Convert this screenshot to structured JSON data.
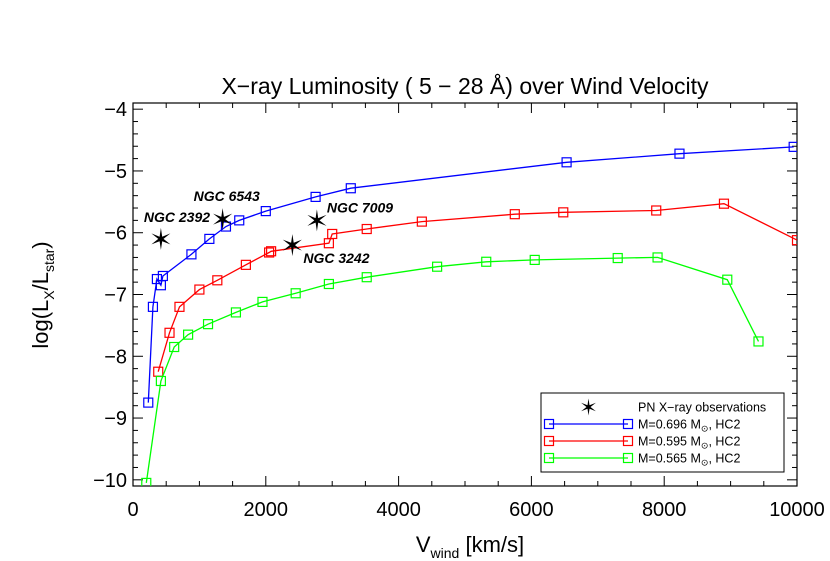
{
  "chart_data": {
    "type": "line",
    "title": "X−ray Luminosity (  5 −  28 Å) over Wind Velocity",
    "xlabel": {
      "main": "V",
      "sub": "wind",
      "rest": " [km/s]"
    },
    "ylabel": {
      "main": "log(L",
      "sub1": "X",
      "mid": "/L",
      "sub2": "star",
      "rest": ")"
    },
    "xlim": [
      0,
      10000
    ],
    "ylim": [
      -10.1,
      -3.9
    ],
    "xticks": [
      0,
      2000,
      4000,
      6000,
      8000,
      10000
    ],
    "xtick_labels": [
      "0",
      "2000",
      "4000",
      "6000",
      "8000",
      "10000"
    ],
    "yticks": [
      -10,
      -9,
      -8,
      -7,
      -6,
      -5,
      -4
    ],
    "ytick_labels": [
      "−10",
      "−9",
      "−8",
      "−7",
      "−6",
      "−5",
      "−4"
    ],
    "grid": false,
    "legend_position": "bottom-right",
    "series": [
      {
        "name": "M=0.696 M⊙,   HC2",
        "legend_main": "M=0.696 M",
        "legend_sub": "⊙",
        "legend_rest": ",   HC2",
        "color": "#0000ff",
        "x": [
          230,
          300,
          360,
          420,
          450,
          880,
          1150,
          1400,
          1600,
          2000,
          2750,
          3280,
          6530,
          8230,
          9950
        ],
        "y": [
          -8.75,
          -7.2,
          -6.75,
          -6.85,
          -6.7,
          -6.35,
          -6.1,
          -5.9,
          -5.8,
          -5.65,
          -5.42,
          -5.28,
          -4.86,
          -4.72,
          -4.61
        ]
      },
      {
        "name": "M=0.595 M⊙,   HC2",
        "legend_main": "M=0.595 M",
        "legend_sub": "⊙",
        "legend_rest": ",   HC2",
        "color": "#ff0000",
        "x": [
          380,
          550,
          700,
          1000,
          1270,
          1700,
          2050,
          2080,
          2950,
          3000,
          3520,
          4350,
          5750,
          6480,
          7880,
          8900,
          10000
        ],
        "y": [
          -8.25,
          -7.62,
          -7.2,
          -6.92,
          -6.77,
          -6.52,
          -6.32,
          -6.3,
          -6.17,
          -6.02,
          -5.94,
          -5.82,
          -5.7,
          -5.67,
          -5.64,
          -5.53,
          -6.12
        ]
      },
      {
        "name": "M=0.565 M⊙,   HC2",
        "legend_main": "M=0.565 M",
        "legend_sub": "⊙",
        "legend_rest": ",   HC2",
        "color": "#00ff00",
        "x": [
          200,
          420,
          620,
          830,
          1130,
          1550,
          1950,
          2450,
          2950,
          3520,
          4580,
          5320,
          6050,
          7300,
          7900,
          8950,
          9420
        ],
        "y": [
          -10.05,
          -8.4,
          -7.85,
          -7.65,
          -7.48,
          -7.29,
          -7.12,
          -6.98,
          -6.83,
          -6.72,
          -6.55,
          -6.47,
          -6.44,
          -6.41,
          -6.4,
          -6.76,
          -7.76
        ]
      }
    ],
    "observations": {
      "name": "PN X−ray observations",
      "color": "#000000",
      "points": [
        {
          "label": "NGC 2392",
          "x": 420,
          "y": -6.1
        },
        {
          "label": "NGC 6543",
          "x": 1350,
          "y": -5.78
        },
        {
          "label": "NGC 7009",
          "x": 2770,
          "y": -5.8
        },
        {
          "label": "NGC 3242",
          "x": 2400,
          "y": -6.2
        }
      ]
    }
  }
}
